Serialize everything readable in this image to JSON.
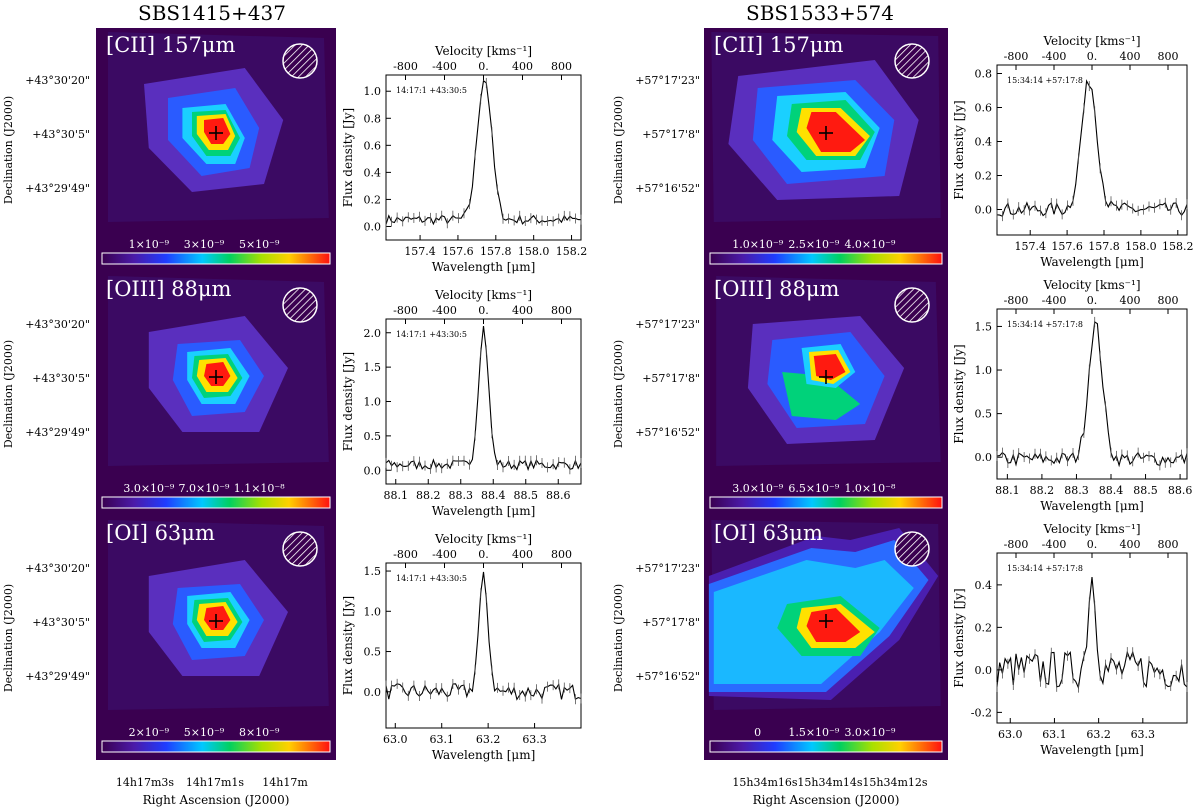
{
  "columns": [
    {
      "title": "SBS1415+437",
      "dec_axis_label": "Declination (J2000)",
      "dec_ticks": [
        "+43°30'20\"",
        "+43°30'5\"",
        "+43°29'49\""
      ],
      "ra_axis_label": "Right Ascension (J2000)",
      "ra_ticks": [
        "14h17m3s",
        "14h17m1s",
        "14h17m"
      ],
      "rows": [
        {
          "map": {
            "line_label": "[CII] 157μm",
            "colorbar_ticks": [
              "1×10⁻⁹",
              "3×10⁻⁹",
              "5×10⁻⁹"
            ],
            "shape": "elongated"
          },
          "spectrum": {
            "type": "line",
            "annotation": "14:17:1 +43:30:5",
            "xlabel": "Wavelength [μm]",
            "ylabel": "Flux density [Jy]",
            "top_label": "Velocity [kms⁻¹]",
            "top_ticks": [
              "-800",
              "-400",
              "0.",
              "400",
              "800"
            ],
            "xlim": [
              157.22,
              158.25
            ],
            "ylim": [
              -0.1,
              1.12
            ],
            "x_ticks": [
              157.4,
              157.6,
              157.8,
              158.0,
              158.2
            ],
            "x_tick_labels": [
              "157.4",
              "157.6",
              "157.8",
              "158.0",
              "158.2"
            ],
            "y_ticks": [
              0.0,
              0.2,
              0.4,
              0.6,
              0.8,
              1.0
            ],
            "y_tick_labels": [
              "0.0",
              "0.2",
              "0.4",
              "0.6",
              "0.8",
              "1.0"
            ],
            "peak_x": 157.74,
            "peak_y": 1.05,
            "sigma": 0.038,
            "baseline": 0.05,
            "noise": 0.035
          }
        },
        {
          "map": {
            "line_label": "[OIII] 88μm",
            "colorbar_ticks": [
              "3.0×10⁻⁹",
              "7.0×10⁻⁹",
              "1.1×10⁻⁸"
            ],
            "shape": "compact"
          },
          "spectrum": {
            "type": "line",
            "annotation": "14:17:1 +43:30:5",
            "xlabel": "Wavelength [μm]",
            "ylabel": "Flux density [Jy]",
            "top_label": "Velocity [kms⁻¹]",
            "top_ticks": [
              "-800",
              "-400",
              "0.",
              "400",
              "800"
            ],
            "xlim": [
              88.07,
              88.67
            ],
            "ylim": [
              -0.2,
              2.2
            ],
            "x_ticks": [
              88.1,
              88.2,
              88.3,
              88.4,
              88.5,
              88.6
            ],
            "x_tick_labels": [
              "88.1",
              "88.2",
              "88.3",
              "88.4",
              "88.5",
              "88.6"
            ],
            "y_ticks": [
              0.0,
              0.5,
              1.0,
              1.5,
              2.0
            ],
            "y_tick_labels": [
              "0.0",
              "0.5",
              "1.0",
              "1.5",
              "2.0"
            ],
            "peak_x": 88.37,
            "peak_y": 2.0,
            "sigma": 0.015,
            "baseline": 0.08,
            "noise": 0.07
          }
        },
        {
          "map": {
            "line_label": "[OI] 63μm",
            "colorbar_ticks": [
              "2×10⁻⁹",
              "5×10⁻⁹",
              "8×10⁻⁹"
            ],
            "shape": "compact"
          },
          "spectrum": {
            "type": "line",
            "annotation": "14:17:1 +43:30:5",
            "xlabel": "Wavelength [μm]",
            "ylabel": "Flux density [Jy]",
            "top_label": "Velocity [kms⁻¹]",
            "top_ticks": [
              "-800",
              "-400",
              "0.",
              "400",
              "800"
            ],
            "xlim": [
              62.98,
              63.4
            ],
            "ylim": [
              -0.45,
              1.6
            ],
            "x_ticks": [
              63.0,
              63.1,
              63.2,
              63.3
            ],
            "x_tick_labels": [
              "63.0",
              "63.1",
              "63.2",
              "63.3"
            ],
            "y_ticks": [
              0.0,
              0.5,
              1.0,
              1.5
            ],
            "y_tick_labels": [
              "0.0",
              "0.5",
              "1.0",
              "1.5"
            ],
            "peak_x": 63.19,
            "peak_y": 1.4,
            "sigma": 0.01,
            "baseline": 0.0,
            "noise": 0.1
          }
        }
      ]
    },
    {
      "title": "SBS1533+574",
      "dec_axis_label": "Declination (J2000)",
      "dec_ticks": [
        "+57°17'23\"",
        "+57°17'8\"",
        "+57°16'52\""
      ],
      "ra_axis_label": "Right Ascension (J2000)",
      "ra_ticks": [
        "15h34m16s",
        "15h34m14s",
        "15h34m12s"
      ],
      "rows": [
        {
          "map": {
            "line_label": "[CII] 157μm",
            "colorbar_ticks": [
              "1.0×10⁻⁹",
              "2.5×10⁻⁹",
              "4.0×10⁻⁹"
            ],
            "shape": "broad"
          },
          "spectrum": {
            "type": "line",
            "annotation": "15:34:14 +57:17:8",
            "xlabel": "Wavelength [μm]",
            "ylabel": "Flux density [Jy]",
            "top_label": "Velocity [kms⁻¹]",
            "top_ticks": [
              "-800",
              "-400",
              "0.",
              "400",
              "800"
            ],
            "xlim": [
              157.22,
              158.25
            ],
            "ylim": [
              -0.15,
              0.85
            ],
            "x_ticks": [
              157.4,
              157.6,
              157.8,
              158.0,
              158.2
            ],
            "x_tick_labels": [
              "157.4",
              "157.6",
              "157.8",
              "158.0",
              "158.2"
            ],
            "y_ticks": [
              0.0,
              0.2,
              0.4,
              0.6,
              0.8
            ],
            "y_tick_labels": [
              "0.0",
              "0.2",
              "0.4",
              "0.6",
              "0.8"
            ],
            "peak_x": 157.72,
            "peak_y": 0.76,
            "sigma": 0.042,
            "baseline": 0.0,
            "noise": 0.04
          }
        },
        {
          "map": {
            "line_label": "[OIII] 88μm",
            "colorbar_ticks": [
              "3.0×10⁻⁹",
              "6.5×10⁻⁹",
              "1.0×10⁻⁸"
            ],
            "shape": "double"
          },
          "spectrum": {
            "type": "line",
            "annotation": "15:34:14 +57:17:8",
            "xlabel": "Wavelength [μm]",
            "ylabel": "Flux density [Jy]",
            "top_label": "Velocity [kms⁻¹]",
            "top_ticks": [
              "-800",
              "-400",
              "0.",
              "400",
              "800"
            ],
            "xlim": [
              88.07,
              88.62
            ],
            "ylim": [
              -0.25,
              1.7
            ],
            "x_ticks": [
              88.1,
              88.2,
              88.3,
              88.4,
              88.5,
              88.6
            ],
            "x_tick_labels": [
              "88.1",
              "88.2",
              "88.3",
              "88.4",
              "88.5",
              "88.6"
            ],
            "y_ticks": [
              0.0,
              0.5,
              1.0,
              1.5
            ],
            "y_tick_labels": [
              "0.0",
              "0.5",
              "1.0",
              "1.5"
            ],
            "peak_x": 88.355,
            "peak_y": 1.55,
            "sigma": 0.02,
            "baseline": -0.02,
            "noise": 0.08
          }
        },
        {
          "map": {
            "line_label": "[OI] 63μm",
            "colorbar_ticks": [
              "0",
              "1.5×10⁻⁹",
              "3.0×10⁻⁹"
            ],
            "shape": "extended"
          },
          "spectrum": {
            "type": "line",
            "annotation": "15:34:14 +57:17:8",
            "xlabel": "Wavelength [μm]",
            "ylabel": "Flux density [Jy]",
            "top_label": "Velocity [kms⁻¹]",
            "top_ticks": [
              "-800",
              "-400",
              "0.",
              "400",
              "800"
            ],
            "xlim": [
              62.97,
              63.4
            ],
            "ylim": [
              -0.25,
              0.55
            ],
            "x_ticks": [
              63.0,
              63.1,
              63.2,
              63.3
            ],
            "x_tick_labels": [
              "63.0",
              "63.1",
              "63.2",
              "63.3"
            ],
            "y_ticks": [
              -0.2,
              0.0,
              0.2,
              0.4
            ],
            "y_tick_labels": [
              "-0.2",
              "0.0",
              "0.2",
              "0.4"
            ],
            "peak_x": 63.185,
            "peak_y": 0.44,
            "sigma": 0.009,
            "baseline": 0.0,
            "noise": 0.09
          }
        }
      ]
    }
  ],
  "chart_data": [
    {
      "type": "line",
      "title": "SBS1415+437 [CII] 157μm",
      "xlabel": "Wavelength [μm]",
      "ylabel": "Flux density [Jy]",
      "xlim": [
        157.22,
        158.25
      ],
      "ylim": [
        -0.1,
        1.12
      ],
      "series": [
        {
          "name": "flux",
          "peak_wavelength": 157.74,
          "peak_flux": 1.05
        }
      ]
    },
    {
      "type": "line",
      "title": "SBS1415+437 [OIII] 88μm",
      "xlabel": "Wavelength [μm]",
      "ylabel": "Flux density [Jy]",
      "xlim": [
        88.07,
        88.67
      ],
      "ylim": [
        -0.2,
        2.2
      ],
      "series": [
        {
          "name": "flux",
          "peak_wavelength": 88.37,
          "peak_flux": 2.0
        }
      ]
    },
    {
      "type": "line",
      "title": "SBS1415+437 [OI] 63μm",
      "xlabel": "Wavelength [μm]",
      "ylabel": "Flux density [Jy]",
      "xlim": [
        62.98,
        63.4
      ],
      "ylim": [
        -0.45,
        1.6
      ],
      "series": [
        {
          "name": "flux",
          "peak_wavelength": 63.19,
          "peak_flux": 1.4
        }
      ]
    },
    {
      "type": "line",
      "title": "SBS1533+574 [CII] 157μm",
      "xlabel": "Wavelength [μm]",
      "ylabel": "Flux density [Jy]",
      "xlim": [
        157.22,
        158.25
      ],
      "ylim": [
        -0.15,
        0.85
      ],
      "series": [
        {
          "name": "flux",
          "peak_wavelength": 157.72,
          "peak_flux": 0.76
        }
      ]
    },
    {
      "type": "line",
      "title": "SBS1533+574 [OIII] 88μm",
      "xlabel": "Wavelength [μm]",
      "ylabel": "Flux density [Jy]",
      "xlim": [
        88.07,
        88.62
      ],
      "ylim": [
        -0.25,
        1.7
      ],
      "series": [
        {
          "name": "flux",
          "peak_wavelength": 88.355,
          "peak_flux": 1.55
        }
      ]
    },
    {
      "type": "line",
      "title": "SBS1533+574 [OI] 63μm",
      "xlabel": "Wavelength [μm]",
      "ylabel": "Flux density [Jy]",
      "xlim": [
        62.97,
        63.4
      ],
      "ylim": [
        -0.25,
        0.55
      ],
      "series": [
        {
          "name": "flux",
          "peak_wavelength": 63.185,
          "peak_flux": 0.44
        }
      ]
    }
  ]
}
